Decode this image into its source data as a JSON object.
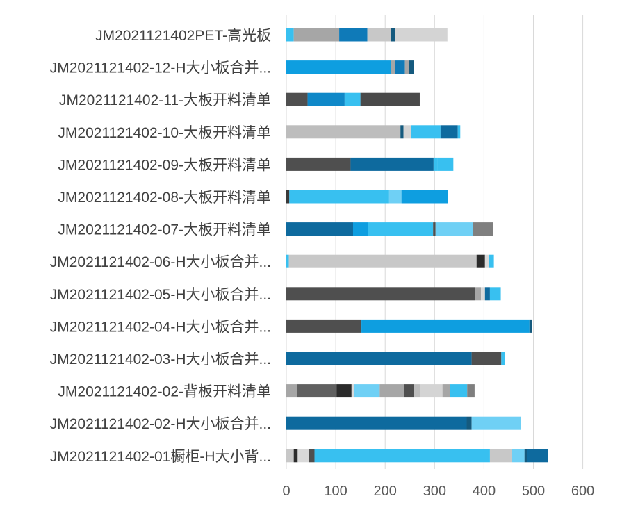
{
  "chart_data": {
    "type": "bar",
    "orientation": "horizontal",
    "stacked": true,
    "title": "",
    "xlabel": "",
    "ylabel": "",
    "xlim": [
      0,
      600
    ],
    "x_ticks": [
      0,
      100,
      200,
      300,
      400,
      500,
      600
    ],
    "grid": "vertical",
    "legend": "none",
    "categories": [
      "JM2021121402PET-高光板",
      "JM2021121402-12-H大小板合并...",
      "JM2021121402-11-大板开料清单",
      "JM2021121402-10-大板开料清单",
      "JM2021121402-09-大板开料清单",
      "JM2021121402-08-大板开料清单",
      "JM2021121402-07-大板开料清单",
      "JM2021121402-06-H大小板合并...",
      "JM2021121402-05-H大小板合并...",
      "JM2021121402-04-H大小板合并...",
      "JM2021121402-03-H大小板合并...",
      "JM2021121402-02-背板开料清单",
      "JM2021121402-02-H大小板合并...",
      "JM2021121402-01橱柜-H大小背..."
    ],
    "segments": [
      [
        {
          "value": 15,
          "color": "#38c0f0"
        },
        {
          "value": 92,
          "color": "#a6a6a6"
        },
        {
          "value": 57,
          "color": "#0f7ab8"
        },
        {
          "value": 48,
          "color": "#c8c8c8"
        },
        {
          "value": 8,
          "color": "#155a7e"
        },
        {
          "value": 106,
          "color": "#d4d4d4"
        }
      ],
      [
        {
          "value": 212,
          "color": "#0e9ee0"
        },
        {
          "value": 8,
          "color": "#a6a6a6"
        },
        {
          "value": 20,
          "color": "#0f7ab8"
        },
        {
          "value": 8,
          "color": "#a6a6a6"
        },
        {
          "value": 10,
          "color": "#155a7e"
        }
      ],
      [
        {
          "value": 43,
          "color": "#4f4f4f"
        },
        {
          "value": 75,
          "color": "#0f88c8"
        },
        {
          "value": 32,
          "color": "#38c0f0"
        },
        {
          "value": 120,
          "color": "#4a4a4a"
        }
      ],
      [
        {
          "value": 231,
          "color": "#bdbdbd"
        },
        {
          "value": 6,
          "color": "#155a7e"
        },
        {
          "value": 15,
          "color": "#d4d4d4"
        },
        {
          "value": 60,
          "color": "#38c0f0"
        },
        {
          "value": 35,
          "color": "#0e6a9e"
        },
        {
          "value": 5,
          "color": "#38c0f0"
        }
      ],
      [
        {
          "value": 130,
          "color": "#4f4f4f"
        },
        {
          "value": 168,
          "color": "#0e6a9e"
        },
        {
          "value": 8,
          "color": "#38c0f0"
        },
        {
          "value": 32,
          "color": "#38c0f0"
        }
      ],
      [
        {
          "value": 6,
          "color": "#3a3a3a"
        },
        {
          "value": 202,
          "color": "#38c0f0"
        },
        {
          "value": 25,
          "color": "#6fd0f5"
        },
        {
          "value": 94,
          "color": "#0e9ee0"
        }
      ],
      [
        {
          "value": 135,
          "color": "#0e6a9e"
        },
        {
          "value": 30,
          "color": "#0e9ee0"
        },
        {
          "value": 132,
          "color": "#38c0f0"
        },
        {
          "value": 5,
          "color": "#4f4f4f"
        },
        {
          "value": 75,
          "color": "#6fd0f5"
        },
        {
          "value": 42,
          "color": "#7f7f7f"
        }
      ],
      [
        {
          "value": 5,
          "color": "#38c0f0"
        },
        {
          "value": 380,
          "color": "#c8c8c8"
        },
        {
          "value": 17,
          "color": "#2b2b2b"
        },
        {
          "value": 8,
          "color": "#d9d9d9"
        },
        {
          "value": 10,
          "color": "#38c0f0"
        }
      ],
      [
        {
          "value": 382,
          "color": "#4f4f4f"
        },
        {
          "value": 12,
          "color": "#a6a6a6"
        },
        {
          "value": 8,
          "color": "#d9d9d9"
        },
        {
          "value": 10,
          "color": "#0e6a9e"
        },
        {
          "value": 22,
          "color": "#38c0f0"
        }
      ],
      [
        {
          "value": 152,
          "color": "#4f4f4f"
        },
        {
          "value": 340,
          "color": "#0e9ee0"
        },
        {
          "value": 5,
          "color": "#155a7e"
        }
      ],
      [
        {
          "value": 375,
          "color": "#0e6a9e"
        },
        {
          "value": 60,
          "color": "#4f4f4f"
        },
        {
          "value": 8,
          "color": "#38c0f0"
        }
      ],
      [
        {
          "value": 22,
          "color": "#a6a6a6"
        },
        {
          "value": 80,
          "color": "#606060"
        },
        {
          "value": 30,
          "color": "#2b2b2b"
        },
        {
          "value": 5,
          "color": "#d9d9d9"
        },
        {
          "value": 52,
          "color": "#6fd0f5"
        },
        {
          "value": 50,
          "color": "#a6a6a6"
        },
        {
          "value": 20,
          "color": "#4f4f4f"
        },
        {
          "value": 12,
          "color": "#bdbdbd"
        },
        {
          "value": 45,
          "color": "#d4d4d4"
        },
        {
          "value": 15,
          "color": "#a6a6a6"
        },
        {
          "value": 35,
          "color": "#38c0f0"
        },
        {
          "value": 15,
          "color": "#7f7f7f"
        }
      ],
      [
        {
          "value": 365,
          "color": "#0e6a9e"
        },
        {
          "value": 10,
          "color": "#155a7e"
        },
        {
          "value": 100,
          "color": "#6fd0f5"
        }
      ],
      [
        {
          "value": 15,
          "color": "#c8c8c8"
        },
        {
          "value": 8,
          "color": "#2b2b2b"
        },
        {
          "value": 22,
          "color": "#d9d9d9"
        },
        {
          "value": 12,
          "color": "#4f4f4f"
        },
        {
          "value": 355,
          "color": "#38c0f0"
        },
        {
          "value": 45,
          "color": "#c8c8c8"
        },
        {
          "value": 25,
          "color": "#6fd0f5"
        },
        {
          "value": 5,
          "color": "#155a7e"
        },
        {
          "value": 43,
          "color": "#0e6a9e"
        }
      ]
    ]
  }
}
